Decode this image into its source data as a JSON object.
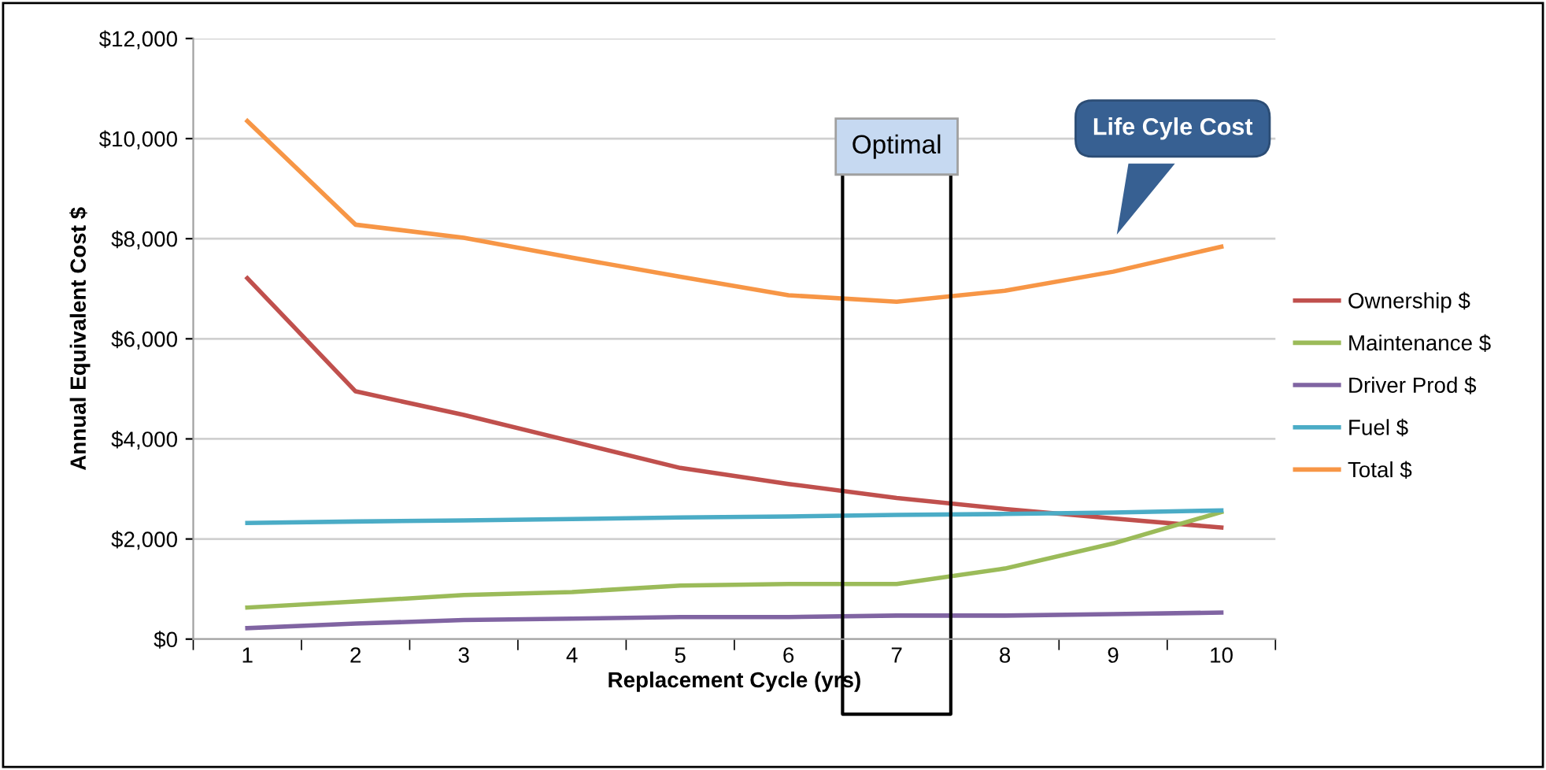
{
  "chart_data": {
    "type": "line",
    "xlabel": "Replacement Cycle (yrs)",
    "ylabel": "Annual Equivalent Cost $",
    "categories": [
      "1",
      "2",
      "3",
      "4",
      "5",
      "6",
      "7",
      "8",
      "9",
      "10"
    ],
    "series": [
      {
        "name": "Ownership $",
        "color": "#c0504d",
        "values": [
          7210,
          4950,
          4480,
          3950,
          3420,
          3100,
          2820,
          2600,
          2410,
          2230
        ]
      },
      {
        "name": "Maintenance $",
        "color": "#9bbb59",
        "values": [
          630,
          750,
          880,
          940,
          1070,
          1100,
          1100,
          1410,
          1910,
          2540
        ]
      },
      {
        "name": "Driver Prod $",
        "color": "#8064a2",
        "values": [
          220,
          310,
          380,
          410,
          440,
          440,
          470,
          470,
          500,
          530
        ]
      },
      {
        "name": "Fuel $",
        "color": "#4bacc6",
        "values": [
          2320,
          2350,
          2370,
          2400,
          2430,
          2450,
          2480,
          2500,
          2530,
          2570
        ]
      },
      {
        "name": "Total $",
        "color": "#f79646",
        "values": [
          10350,
          8280,
          8020,
          7620,
          7240,
          6870,
          6740,
          6960,
          7340,
          7840
        ]
      }
    ],
    "ylim": [
      0,
      12000
    ],
    "yticks": [
      {
        "value": 0,
        "label": "$0"
      },
      {
        "value": 2000,
        "label": "$2,000"
      },
      {
        "value": 4000,
        "label": "$4,000"
      },
      {
        "value": 6000,
        "label": "$6,000"
      },
      {
        "value": 8000,
        "label": "$8,000"
      },
      {
        "value": 10000,
        "label": "$10,000"
      },
      {
        "value": 12000,
        "label": "$12,000"
      }
    ],
    "grid": "y",
    "legend": "right",
    "marker": "none",
    "line_style": "solid",
    "annotations": [
      "Optimal",
      "Life Cyle Cost"
    ]
  }
}
